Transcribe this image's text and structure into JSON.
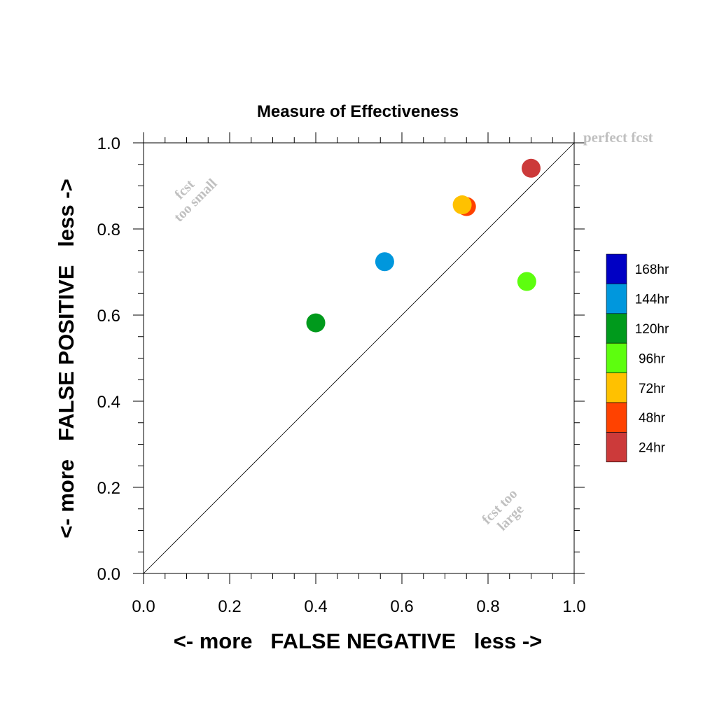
{
  "chart_data": {
    "type": "scatter",
    "title": "Measure of Effectiveness",
    "xlabel": "<- more   FALSE NEGATIVE   less ->",
    "ylabel": "<- more   FALSE POSITIVE   less ->",
    "xlim": [
      0.0,
      1.0
    ],
    "ylim": [
      0.0,
      1.0
    ],
    "xticks": [
      "0.0",
      "0.2",
      "0.4",
      "0.6",
      "0.8",
      "1.0"
    ],
    "yticks": [
      "0.0",
      "0.2",
      "0.4",
      "0.6",
      "0.8",
      "1.0"
    ],
    "grid": false,
    "diagonal_reference_line": true,
    "annotations": {
      "perfect": "perfect fcst",
      "small_line1": "fcst",
      "small_line2": "too small",
      "large_line1": "fcst too",
      "large_line2": "large"
    },
    "legend": {
      "placement": "right",
      "entries": [
        {
          "label": "168hr",
          "color": "#0000c4"
        },
        {
          "label": "144hr",
          "color": "#0097dd"
        },
        {
          "label": "120hr",
          "color": "#009a1c"
        },
        {
          "label": "96hr",
          "color": "#5dfe0e"
        },
        {
          "label": "72hr",
          "color": "#ffc100"
        },
        {
          "label": "48hr",
          "color": "#ff4200"
        },
        {
          "label": "24hr",
          "color": "#cc3a3a"
        }
      ]
    },
    "points": [
      {
        "series": "120hr",
        "x": 0.4,
        "y": 0.582,
        "color": "#009a1c"
      },
      {
        "series": "144hr",
        "x": 0.56,
        "y": 0.724,
        "color": "#0097dd"
      },
      {
        "series": "48hr",
        "x": 0.75,
        "y": 0.852,
        "color": "#ff4200"
      },
      {
        "series": "72hr",
        "x": 0.74,
        "y": 0.856,
        "color": "#ffc100"
      },
      {
        "series": "24hr",
        "x": 0.9,
        "y": 0.941,
        "color": "#cc3a3a"
      },
      {
        "series": "96hr",
        "x": 0.89,
        "y": 0.678,
        "color": "#5dfe0e"
      }
    ]
  }
}
